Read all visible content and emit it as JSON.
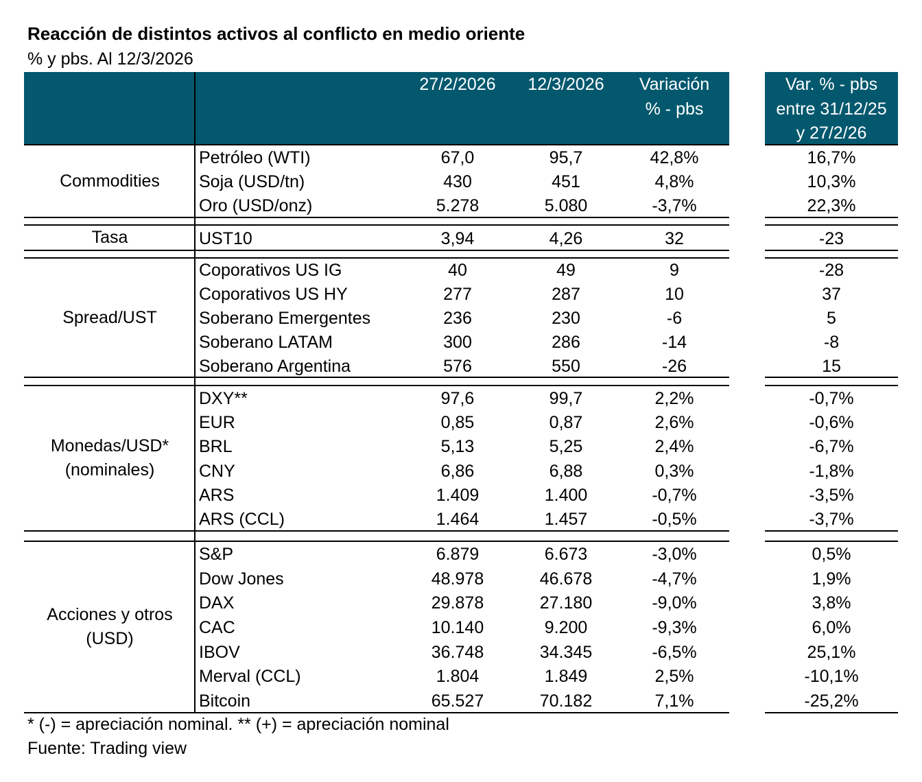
{
  "title": "Reacción de distintos activos al conflicto en medio oriente",
  "subtitle": "% y pbs. Al 12/3/2026",
  "header_color": "#03586e",
  "headers": {
    "col1": "27/2/2026",
    "col2": "12/3/2026",
    "col3_line1": "Variación",
    "col3_line2": "% - pbs",
    "col4_line1": "Var. % - pbs",
    "col4_line2": "entre 31/12/25",
    "col4_line3": "y 27/2/26"
  },
  "footnotes": [
    "* (-) = apreciación nominal. ** (+) = apreciación nominal",
    "Fuente: Trading view"
  ],
  "chart_data": {
    "type": "table",
    "columns": [
      "27/2/2026",
      "12/3/2026",
      "Variación % - pbs",
      "Var. % - pbs entre 31/12/25 y 27/2/26"
    ],
    "sections": [
      {
        "group": [
          "Commodities"
        ],
        "rows": [
          [
            "Petróleo (WTI)",
            "67,0",
            "95,7",
            "42,8%",
            "16,7%"
          ],
          [
            "Soja (USD/tn)",
            "430",
            "451",
            "4,8%",
            "10,3%"
          ],
          [
            "Oro (USD/onz)",
            "5.278",
            "5.080",
            "-3,7%",
            "22,3%"
          ]
        ]
      },
      {
        "group": [
          "Tasa"
        ],
        "rows": [
          [
            "UST10",
            "3,94",
            "4,26",
            "32",
            "-23"
          ]
        ]
      },
      {
        "group": [
          "Spread/UST"
        ],
        "rows": [
          [
            "Coporativos US IG",
            "40",
            "49",
            "9",
            "-28"
          ],
          [
            "Coporativos US HY",
            "277",
            "287",
            "10",
            "37"
          ],
          [
            "Soberano Emergentes",
            "236",
            "230",
            "-6",
            "5"
          ],
          [
            "Soberano LATAM",
            "300",
            "286",
            "-14",
            "-8"
          ],
          [
            "Soberano Argentina",
            "576",
            "550",
            "-26",
            "15"
          ]
        ]
      },
      {
        "group": [
          "Monedas/USD*",
          "(nominales)"
        ],
        "rows": [
          [
            "DXY**",
            "97,6",
            "99,7",
            "2,2%",
            "-0,7%"
          ],
          [
            "EUR",
            "0,85",
            "0,87",
            "2,6%",
            "-0,6%"
          ],
          [
            "BRL",
            "5,13",
            "5,25",
            "2,4%",
            "-6,7%"
          ],
          [
            "CNY",
            "6,86",
            "6,88",
            "0,3%",
            "-1,8%"
          ],
          [
            "ARS",
            "1.409",
            "1.400",
            "-0,7%",
            "-3,5%"
          ],
          [
            "ARS (CCL)",
            "1.464",
            "1.457",
            "-0,5%",
            "-3,7%"
          ]
        ]
      },
      {
        "group": [
          "Acciones y otros",
          "(USD)"
        ],
        "rows": [
          [
            "S&P",
            "6.879",
            "6.673",
            "-3,0%",
            "0,5%"
          ],
          [
            "Dow Jones",
            "48.978",
            "46.678",
            "-4,7%",
            "1,9%"
          ],
          [
            "DAX",
            "29.878",
            "27.180",
            "-9,0%",
            "3,8%"
          ],
          [
            "CAC",
            "10.140",
            "9.200",
            "-9,3%",
            "6,0%"
          ],
          [
            "IBOV",
            "36.748",
            "34.345",
            "-6,5%",
            "25,1%"
          ],
          [
            "Merval (CCL)",
            "1.804",
            "1.849",
            "2,5%",
            "-10,1%"
          ],
          [
            "Bitcoin",
            "65.527",
            "70.182",
            "7,1%",
            "-25,2%"
          ]
        ]
      }
    ]
  }
}
